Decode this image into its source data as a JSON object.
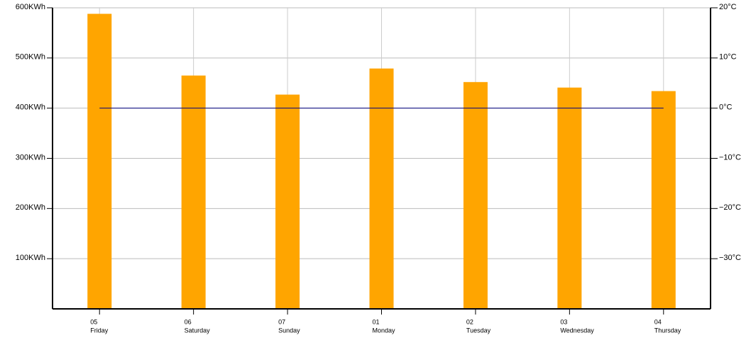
{
  "chart_data": {
    "type": "bar",
    "categories": [
      "05",
      "06",
      "07",
      "01",
      "02",
      "03",
      "04"
    ],
    "category_sublabels": [
      "Friday",
      "Saturday",
      "Sunday",
      "Monday",
      "Tuesday",
      "Wednesday",
      "Thursday"
    ],
    "series": [
      {
        "type": "bar",
        "color": "#ffa500",
        "values": [
          588,
          465,
          427,
          479,
          452,
          441,
          434
        ]
      },
      {
        "type": "line",
        "axis": "y2",
        "color": "#000080",
        "values": [
          0,
          0,
          0,
          0,
          0,
          0,
          0
        ]
      }
    ],
    "ylim": [
      0,
      600
    ],
    "yticks": [
      {
        "value": 100,
        "label": "100KWh"
      },
      {
        "value": 200,
        "label": "200KWh"
      },
      {
        "value": 300,
        "label": "300KWh"
      },
      {
        "value": 400,
        "label": "400KWh"
      },
      {
        "value": 500,
        "label": "500KWh"
      },
      {
        "value": 600,
        "label": "600KWh"
      }
    ],
    "y2lim": [
      -40,
      20
    ],
    "y2ticks": [
      {
        "value": -30,
        "label": "−30°C"
      },
      {
        "value": -20,
        "label": "−20°C"
      },
      {
        "value": -10,
        "label": "−10°C"
      },
      {
        "value": 0,
        "label": "0°C"
      },
      {
        "value": 10,
        "label": "10°C"
      },
      {
        "value": 20,
        "label": "20°C"
      }
    ],
    "grid": true
  }
}
